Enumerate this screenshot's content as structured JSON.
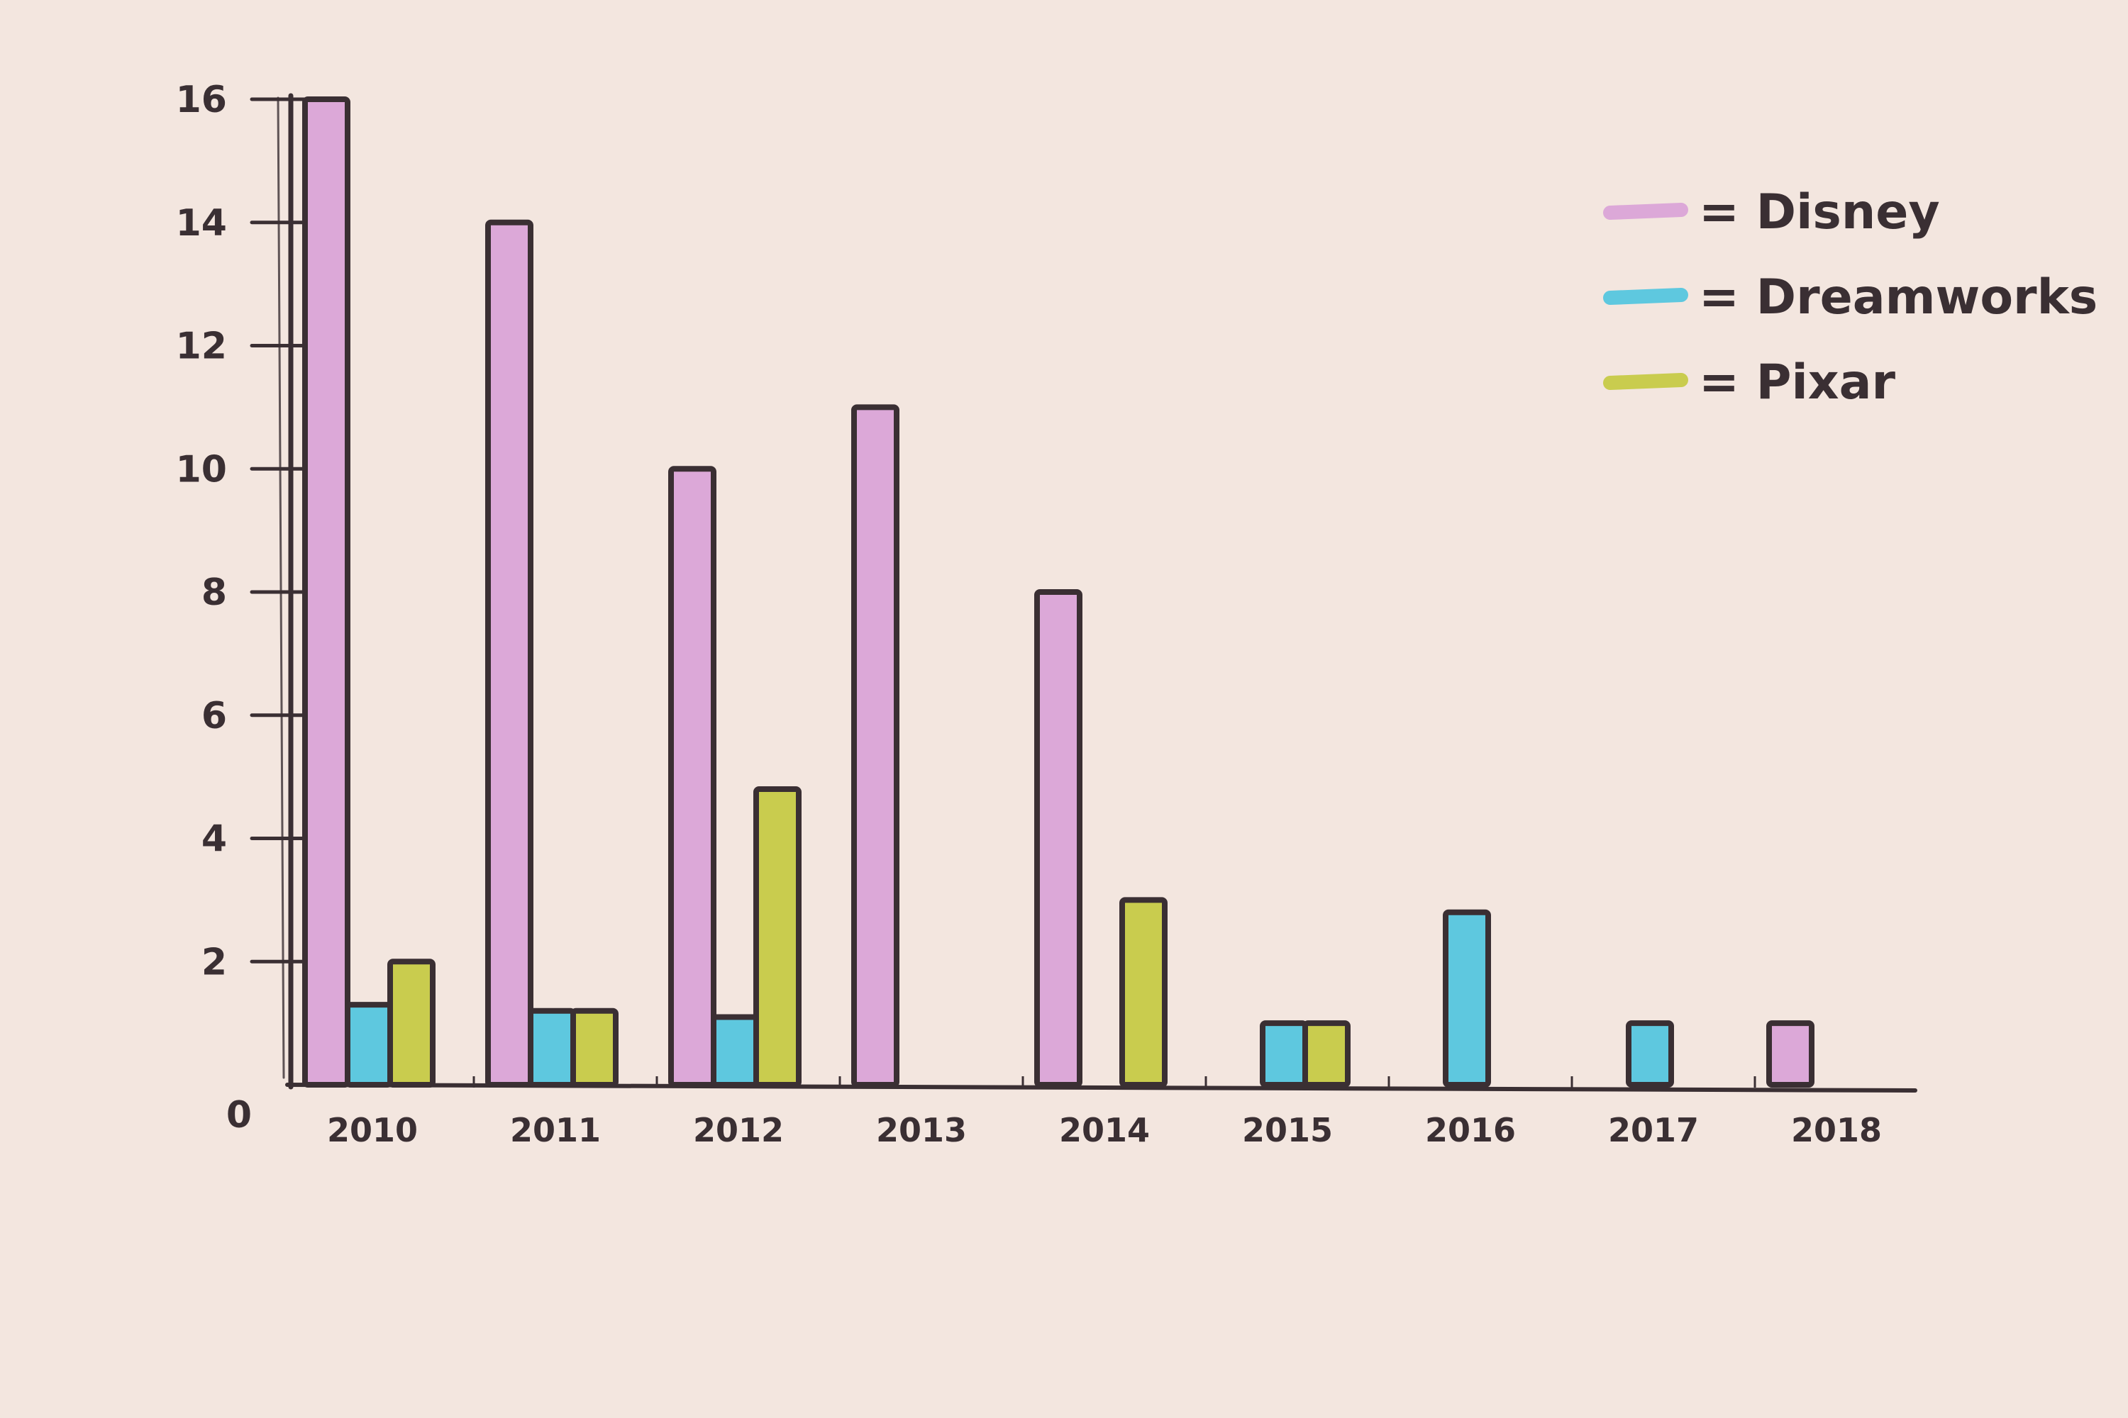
{
  "chart_data": {
    "type": "bar",
    "title": "",
    "xlabel": "",
    "ylabel": "",
    "ylim": [
      0,
      16
    ],
    "yticks": [
      0,
      2,
      4,
      6,
      8,
      10,
      12,
      14,
      16
    ],
    "ytick_labels": [
      "0",
      "2",
      "4",
      "6",
      "8",
      "10",
      "12",
      "14",
      "16"
    ],
    "categories": [
      "2010",
      "2011",
      "2012",
      "2013",
      "2014",
      "2015",
      "2016",
      "2017",
      "2018"
    ],
    "series": [
      {
        "name": "Disney",
        "color": "#dca8d8",
        "values": [
          16,
          14,
          10,
          11,
          8,
          0,
          0,
          0,
          1
        ]
      },
      {
        "name": "Dreamworks",
        "color": "#5ec8df",
        "values": [
          1.3,
          1.2,
          1.1,
          0,
          0,
          1,
          2.8,
          1,
          0
        ]
      },
      {
        "name": "Pixar",
        "color": "#c9cc4e",
        "values": [
          2,
          1.2,
          4.8,
          0,
          3,
          1,
          0,
          0,
          0
        ]
      }
    ],
    "grid": false,
    "legend": {
      "position": "top-right",
      "entries": [
        {
          "label": "= Disney",
          "color": "#dca8d8"
        },
        {
          "label": "= Dreamworks",
          "color": "#5ec8df"
        },
        {
          "label": "= Pixar",
          "color": "#c9cc4e"
        }
      ]
    }
  }
}
